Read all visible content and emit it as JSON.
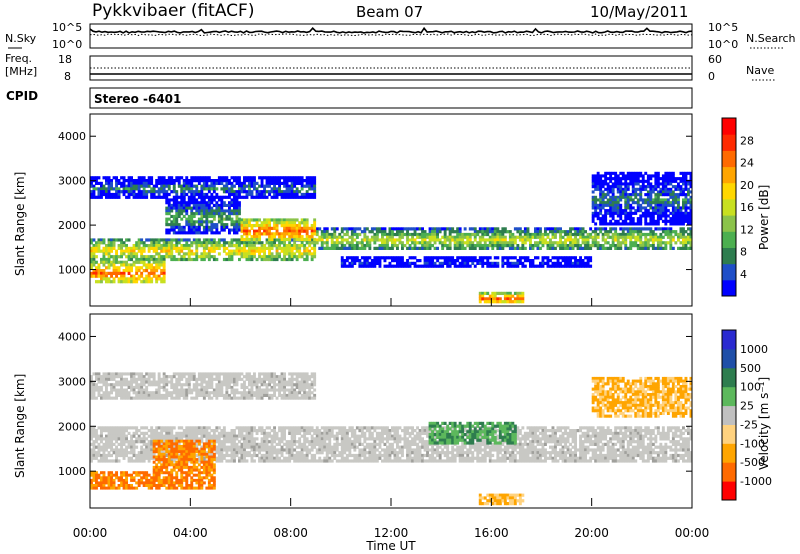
{
  "header": {
    "title": "Pykkvibaer (fitACF)",
    "beam": "Beam 07",
    "date": "10/May/2011"
  },
  "top_panels": {
    "nsky": {
      "label": "N.Sky",
      "left_ticks": [
        "10^5",
        "10^0"
      ],
      "right_ticks": [
        "10^5",
        "10^0"
      ],
      "right_label": "N.Search"
    },
    "freq": {
      "label_line1": "Freq.",
      "label_line2": "[MHz]",
      "left_ticks": [
        "18",
        "8"
      ],
      "right_ticks": [
        "60",
        "0"
      ],
      "right_label": "Nave"
    },
    "cpid": {
      "label": "CPID",
      "value": "Stereo  -6401"
    }
  },
  "colorbars": {
    "power": {
      "label": "Power [dB]",
      "ticks": [
        "28",
        "24",
        "20",
        "16",
        "12",
        "8",
        "4"
      ],
      "colors": [
        "#0000ff",
        "#1f4fc8",
        "#2e7d4f",
        "#4caf50",
        "#8bc34a",
        "#c8e020",
        "#ffd700",
        "#ffa500",
        "#ff6a00",
        "#ff2a00",
        "#ff0000"
      ]
    },
    "velocity": {
      "label": "Velocity [m s⁻¹]",
      "ticks": [
        "1000",
        "500",
        "100",
        "25",
        "-25",
        "-100",
        "-500",
        "-1000"
      ],
      "colors": [
        "#2a2ad0",
        "#1f4fa8",
        "#2e7d4f",
        "#5cb85c",
        "#c0c0c0",
        "#ffd27f",
        "#ffa500",
        "#ff6a00",
        "#ff0000"
      ]
    }
  },
  "chart_data": [
    {
      "type": "heatmap",
      "panel": "power",
      "ylabel": "Slant Range [km]",
      "xlabel": "Time UT",
      "xlim": [
        "00:00",
        "24:00"
      ],
      "ylim": [
        180,
        4500
      ],
      "x_ticks": [
        "00:00",
        "04:00",
        "08:00",
        "12:00",
        "16:00",
        "20:00",
        "00:00"
      ],
      "y_ticks": [
        1000,
        2000,
        3000,
        4000
      ],
      "colorbar": "Power [dB]",
      "bands": [
        {
          "t0": 0.0,
          "t1": 9.0,
          "r0": 1200,
          "r1": 1700,
          "level": 20
        },
        {
          "t0": 9.0,
          "t1": 24.0,
          "r0": 1450,
          "r1": 1950,
          "level": 16
        },
        {
          "t0": 0.0,
          "t1": 3.0,
          "r0": 700,
          "r1": 1200,
          "level": 24
        },
        {
          "t0": 3.0,
          "t1": 6.0,
          "r0": 1800,
          "r1": 2600,
          "level": 12
        },
        {
          "t0": 6.0,
          "t1": 9.0,
          "r0": 1650,
          "r1": 2150,
          "level": 24
        },
        {
          "t0": 0.0,
          "t1": 9.0,
          "r0": 2600,
          "r1": 3100,
          "level": 8
        },
        {
          "t0": 20.0,
          "t1": 24.0,
          "r0": 2000,
          "r1": 3200,
          "level": 8
        },
        {
          "t0": 15.5,
          "t1": 17.3,
          "r0": 250,
          "r1": 500,
          "level": 24
        },
        {
          "t0": 10.0,
          "t1": 20.0,
          "r0": 1050,
          "r1": 1300,
          "level": 4
        }
      ]
    },
    {
      "type": "heatmap",
      "panel": "velocity",
      "ylabel": "Slant Range [km]",
      "xlabel": "Time UT",
      "xlim": [
        "00:00",
        "24:00"
      ],
      "ylim": [
        180,
        4500
      ],
      "x_ticks": [
        "00:00",
        "04:00",
        "08:00",
        "12:00",
        "16:00",
        "20:00",
        "00:00"
      ],
      "y_ticks": [
        1000,
        2000,
        3000,
        4000
      ],
      "colorbar": "Velocity [m s⁻¹]",
      "bands": [
        {
          "t0": 0.0,
          "t1": 24.0,
          "r0": 1200,
          "r1": 2000,
          "level": "ground"
        },
        {
          "t0": 0.0,
          "t1": 5.0,
          "r0": 600,
          "r1": 1000,
          "level": -500
        },
        {
          "t0": 2.5,
          "t1": 5.0,
          "r0": 1000,
          "r1": 1700,
          "level": -500
        },
        {
          "t0": 0.0,
          "t1": 9.0,
          "r0": 2600,
          "r1": 3200,
          "level": "ground"
        },
        {
          "t0": 15.5,
          "t1": 17.3,
          "r0": 250,
          "r1": 500,
          "level": -100
        },
        {
          "t0": 13.5,
          "t1": 17.0,
          "r0": 1600,
          "r1": 2100,
          "level": 100
        },
        {
          "t0": 20.0,
          "t1": 24.0,
          "r0": 2200,
          "r1": 3100,
          "level": -100
        }
      ]
    }
  ]
}
